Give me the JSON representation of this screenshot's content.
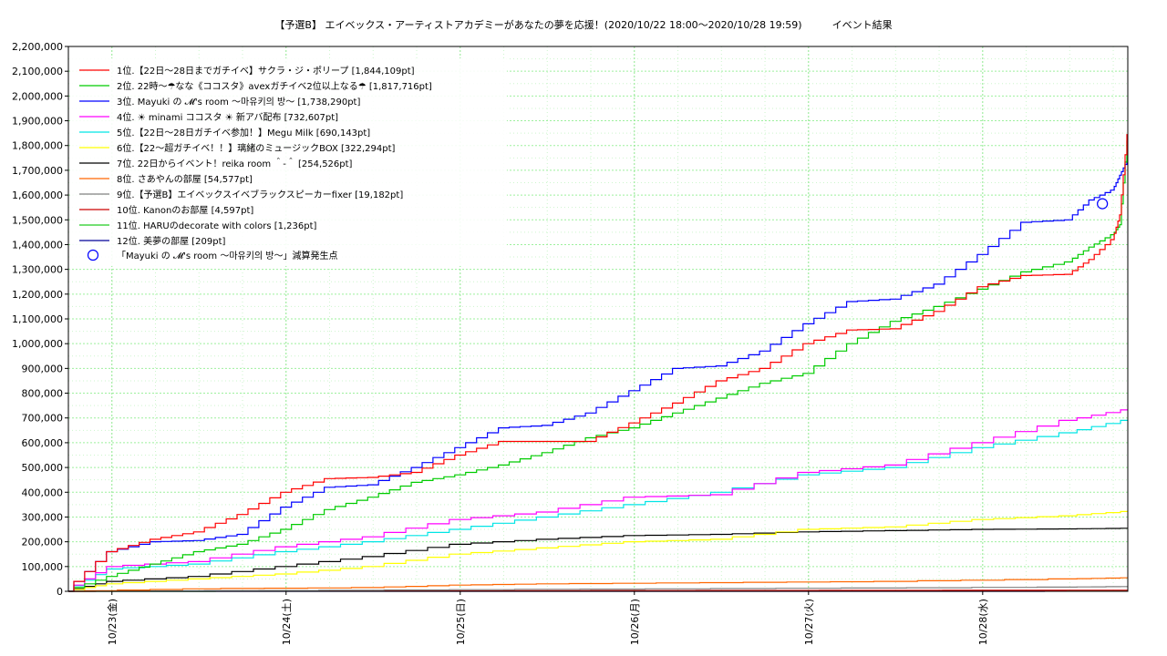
{
  "chart_data": {
    "type": "line",
    "title": "【予選B】 エイベックス・アーティストアカデミーがあなたの夢を応援！(2020/10/22 18:00〜2020/10/28 19:59)　　　イベント結果",
    "xlabel": "",
    "ylabel": "",
    "x_range": [
      "2020/10/22 18:00",
      "2020/10/28 20:00"
    ],
    "x_ticks": [
      "10/23(金)",
      "10/24(土)",
      "10/25(日)",
      "10/26(月)",
      "10/27(火)",
      "10/28(水)"
    ],
    "ylim": [
      0,
      2200000
    ],
    "y_ticks": [
      "0",
      "100,000",
      "200,000",
      "300,000",
      "400,000",
      "500,000",
      "600,000",
      "700,000",
      "800,000",
      "900,000",
      "1,000,000",
      "1,100,000",
      "1,200,000",
      "1,300,000",
      "1,400,000",
      "1,500,000",
      "1,600,000",
      "1,700,000",
      "1,800,000",
      "1,900,000",
      "2,000,000",
      "2,100,000",
      "2,200,000"
    ],
    "grid": true,
    "legend_position": "top-left",
    "series": [
      {
        "name": "1位.【22日〜28日までガチイベ】サクラ・ジ・ポリープ [1,844,109pt]",
        "color": "#ff0000",
        "x": [
          "10/22 18:00",
          "10/23 00:00",
          "10/23 06:00",
          "10/23 12:00",
          "10/23 18:00",
          "10/24 00:00",
          "10/24 06:00",
          "10/24 12:00",
          "10/24 18:00",
          "10/25 00:00",
          "10/25 06:00",
          "10/25 12:00",
          "10/25 18:00",
          "10/26 00:00",
          "10/26 06:00",
          "10/26 12:00",
          "10/26 18:00",
          "10/27 00:00",
          "10/27 06:00",
          "10/27 12:00",
          "10/27 18:00",
          "10/28 00:00",
          "10/28 06:00",
          "10/28 12:00",
          "10/28 15:00",
          "10/28 18:00",
          "10/28 19:00",
          "10/28 20:00"
        ],
        "y": [
          0,
          160000,
          210000,
          240000,
          310000,
          400000,
          455000,
          460000,
          480000,
          550000,
          605000,
          605000,
          605000,
          680000,
          760000,
          850000,
          900000,
          1000000,
          1055000,
          1060000,
          1130000,
          1230000,
          1275000,
          1280000,
          1340000,
          1420000,
          1520000,
          1844109
        ]
      },
      {
        "name": "2位. 22時〜☂なな《ココスタ》avexガチイベ2位以上なる☂ [1,817,716pt]",
        "color": "#00cc00",
        "x": [
          "10/22 18:00",
          "10/23 00:00",
          "10/23 06:00",
          "10/23 12:00",
          "10/23 18:00",
          "10/24 00:00",
          "10/24 06:00",
          "10/24 12:00",
          "10/24 18:00",
          "10/25 00:00",
          "10/25 06:00",
          "10/25 12:00",
          "10/25 18:00",
          "10/26 00:00",
          "10/26 06:00",
          "10/26 12:00",
          "10/26 18:00",
          "10/27 00:00",
          "10/27 06:00",
          "10/27 12:00",
          "10/27 18:00",
          "10/28 00:00",
          "10/28 06:00",
          "10/28 12:00",
          "10/28 15:00",
          "10/28 18:00",
          "10/28 19:00",
          "10/28 20:00"
        ],
        "y": [
          0,
          60000,
          110000,
          160000,
          190000,
          250000,
          330000,
          380000,
          440000,
          470000,
          510000,
          560000,
          620000,
          660000,
          720000,
          780000,
          840000,
          880000,
          1000000,
          1090000,
          1150000,
          1220000,
          1290000,
          1330000,
          1390000,
          1440000,
          1480000,
          1817716
        ]
      },
      {
        "name": "3位. Mayuki の 𝓜's room 〜마유키의 방〜 [1,738,290pt]",
        "color": "#0000ff",
        "x": [
          "10/22 18:00",
          "10/23 00:00",
          "10/23 06:00",
          "10/23 12:00",
          "10/23 18:00",
          "10/24 00:00",
          "10/24 06:00",
          "10/24 12:00",
          "10/24 18:00",
          "10/25 00:00",
          "10/25 06:00",
          "10/25 12:00",
          "10/25 18:00",
          "10/26 00:00",
          "10/26 06:00",
          "10/26 12:00",
          "10/26 18:00",
          "10/27 00:00",
          "10/27 06:00",
          "10/27 12:00",
          "10/27 18:00",
          "10/28 00:00",
          "10/28 06:00",
          "10/28 12:00",
          "10/28 15:00",
          "10/28 18:00",
          "10/28 19:00",
          "10/28 20:00"
        ],
        "y": [
          0,
          160000,
          200000,
          205000,
          230000,
          340000,
          420000,
          430000,
          500000,
          580000,
          660000,
          670000,
          720000,
          810000,
          900000,
          910000,
          970000,
          1080000,
          1170000,
          1180000,
          1240000,
          1360000,
          1490000,
          1500000,
          1580000,
          1620000,
          1680000,
          1738290
        ]
      },
      {
        "name": "4位. ☀ minami ココスタ ☀ 新アバ配布 [732,607pt]",
        "color": "#ff00ff",
        "x": [
          "10/22 18:00",
          "10/23 00:00",
          "10/23 12:00",
          "10/24 00:00",
          "10/24 12:00",
          "10/25 00:00",
          "10/25 12:00",
          "10/26 00:00",
          "10/26 12:00",
          "10/27 00:00",
          "10/27 12:00",
          "10/28 00:00",
          "10/28 12:00",
          "10/28 20:00"
        ],
        "y": [
          0,
          100000,
          120000,
          180000,
          220000,
          290000,
          320000,
          380000,
          390000,
          480000,
          510000,
          600000,
          690000,
          732607
        ]
      },
      {
        "name": "5位.【22日〜28日ガチイベ参加！】Megu Milk [690,143pt]",
        "color": "#00e5e5",
        "x": [
          "10/22 18:00",
          "10/23 00:00",
          "10/23 12:00",
          "10/24 00:00",
          "10/24 12:00",
          "10/25 00:00",
          "10/25 12:00",
          "10/26 00:00",
          "10/26 12:00",
          "10/27 00:00",
          "10/27 12:00",
          "10/28 00:00",
          "10/28 12:00",
          "10/28 20:00"
        ],
        "y": [
          0,
          90000,
          110000,
          160000,
          200000,
          250000,
          300000,
          350000,
          400000,
          470000,
          500000,
          580000,
          640000,
          690143
        ]
      },
      {
        "name": "6位.【22〜超ガチイベ！！】璃緒のミュージックBOX [322,294pt]",
        "color": "#ffff00",
        "x": [
          "10/22 18:00",
          "10/23 00:00",
          "10/23 12:00",
          "10/24 00:00",
          "10/24 12:00",
          "10/25 00:00",
          "10/25 12:00",
          "10/26 00:00",
          "10/26 12:00",
          "10/27 00:00",
          "10/27 12:00",
          "10/28 00:00",
          "10/28 12:00",
          "10/28 20:00"
        ],
        "y": [
          0,
          30000,
          50000,
          70000,
          100000,
          150000,
          175000,
          200000,
          210000,
          250000,
          260000,
          290000,
          305000,
          322294
        ]
      },
      {
        "name": "7位. 22日からイベント！reika room ＾-＾ [254,526pt]",
        "color": "#000000",
        "x": [
          "10/22 18:00",
          "10/23 00:00",
          "10/23 12:00",
          "10/24 00:00",
          "10/24 12:00",
          "10/25 00:00",
          "10/25 12:00",
          "10/26 00:00",
          "10/26 12:00",
          "10/27 00:00",
          "10/27 12:00",
          "10/28 00:00",
          "10/28 12:00",
          "10/28 20:00"
        ],
        "y": [
          0,
          40000,
          60000,
          100000,
          140000,
          190000,
          210000,
          225000,
          230000,
          240000,
          245000,
          250000,
          252000,
          254526
        ]
      },
      {
        "name": "8位. さあやんの部屋 [54,577pt]",
        "color": "#ff6600",
        "x": [
          "10/22 18:00",
          "10/23 12:00",
          "10/24 12:00",
          "10/25 00:00",
          "10/25 12:00",
          "10/26 12:00",
          "10/27 12:00",
          "10/28 12:00",
          "10/28 20:00"
        ],
        "y": [
          0,
          10000,
          15000,
          25000,
          30000,
          35000,
          40000,
          50000,
          54577
        ]
      },
      {
        "name": "9位.【予選B】エイベックスイベブラックスピーカーfixer [19,182pt]",
        "color": "#808080",
        "x": [
          "10/22 18:00",
          "10/24 00:00",
          "10/25 12:00",
          "10/27 00:00",
          "10/28 12:00",
          "10/28 20:00"
        ],
        "y": [
          0,
          3000,
          8000,
          12000,
          17000,
          19182
        ]
      },
      {
        "name": "10位. Kanonのお部屋 [4,597pt]",
        "color": "#cc0000",
        "x": [
          "10/22 18:00",
          "10/24 00:00",
          "10/26 00:00",
          "10/28 20:00"
        ],
        "y": [
          0,
          1000,
          3000,
          4597
        ]
      },
      {
        "name": "11位. HARUのdecorate with colors [1,236pt]",
        "color": "#22cc22",
        "x": [
          "10/22 18:00",
          "10/25 00:00",
          "10/28 20:00"
        ],
        "y": [
          0,
          600,
          1236
        ]
      },
      {
        "name": "12位. 美夢の部屋 [209pt]",
        "color": "#000099",
        "x": [
          "10/22 18:00",
          "10/25 00:00",
          "10/28 20:00"
        ],
        "y": [
          0,
          100,
          209
        ]
      }
    ],
    "annotation": {
      "label": "「Mayuki の 𝓜's room 〜마유키의 방〜」減算発生点",
      "x": "10/28 16:30",
      "y": 1565000,
      "color": "#0000ff"
    }
  }
}
